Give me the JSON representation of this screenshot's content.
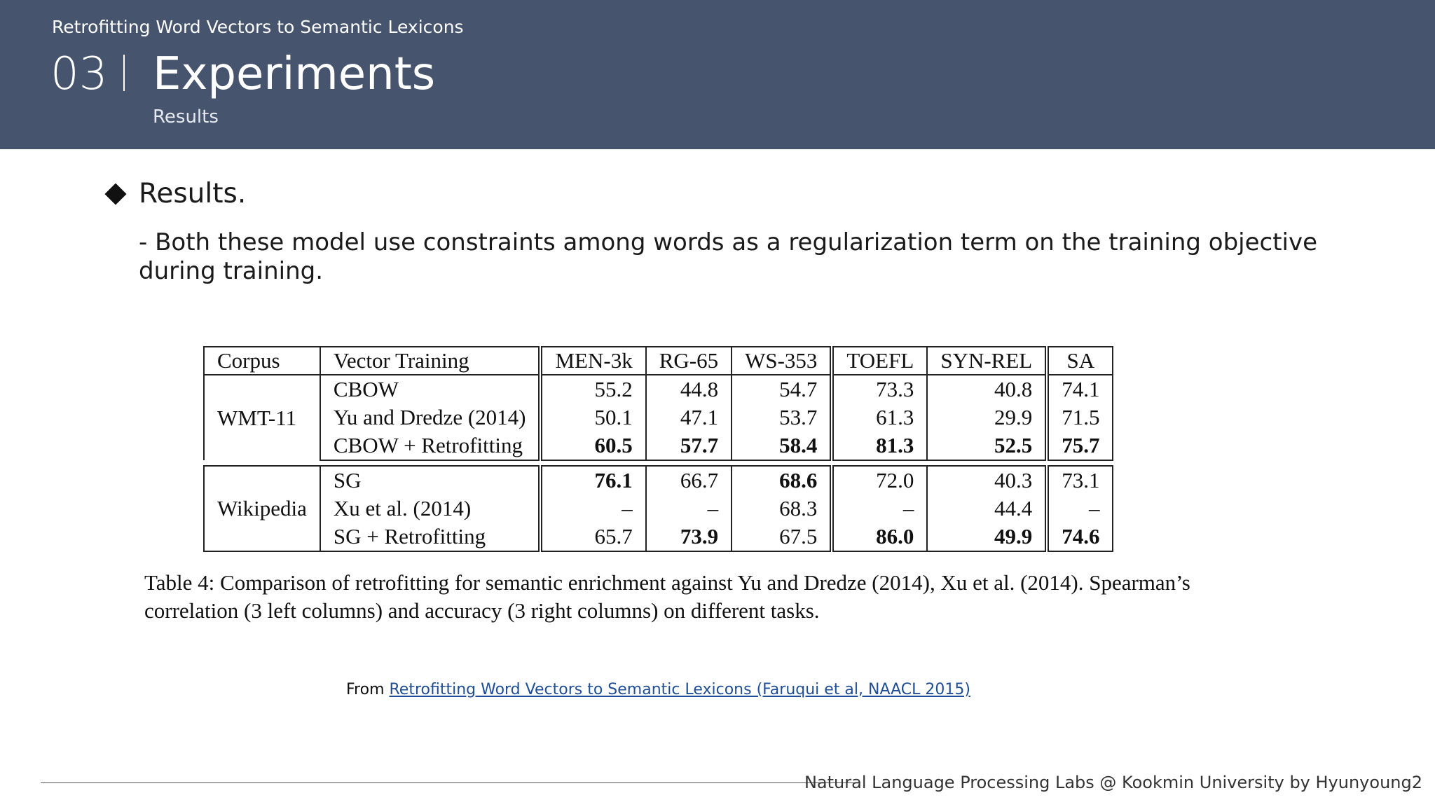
{
  "header": {
    "deck_title": "Retrofitting Word Vectors to Semantic Lexicons",
    "section_number": "03",
    "section_title": "Experiments",
    "section_subtitle": "Results"
  },
  "content": {
    "bullet": "Results.",
    "body": "- Both these model use constraints among words as a regularization term on the training objective during training."
  },
  "table": {
    "headers": [
      "Corpus",
      "Vector Training",
      "MEN-3k",
      "RG-65",
      "WS-353",
      "TOEFL",
      "SYN-REL",
      "SA"
    ],
    "groups": [
      {
        "corpus": "WMT-11",
        "rows": [
          {
            "method": "CBOW",
            "values": [
              "55.2",
              "44.8",
              "54.7",
              "73.3",
              "40.8",
              "74.1"
            ],
            "bold": [
              false,
              false,
              false,
              false,
              false,
              false
            ]
          },
          {
            "method": "Yu and Dredze (2014)",
            "values": [
              "50.1",
              "47.1",
              "53.7",
              "61.3",
              "29.9",
              "71.5"
            ],
            "bold": [
              false,
              false,
              false,
              false,
              false,
              false
            ]
          },
          {
            "method": "CBOW + Retrofitting",
            "values": [
              "60.5",
              "57.7",
              "58.4",
              "81.3",
              "52.5",
              "75.7"
            ],
            "bold": [
              true,
              true,
              true,
              true,
              true,
              true
            ]
          }
        ]
      },
      {
        "corpus": "Wikipedia",
        "rows": [
          {
            "method": "SG",
            "values": [
              "76.1",
              "66.7",
              "68.6",
              "72.0",
              "40.3",
              "73.1"
            ],
            "bold": [
              true,
              false,
              true,
              false,
              false,
              false
            ]
          },
          {
            "method": "Xu et al. (2014)",
            "values": [
              "–",
              "–",
              "68.3",
              "–",
              "44.4",
              "–"
            ],
            "bold": [
              false,
              false,
              false,
              false,
              false,
              false
            ]
          },
          {
            "method": "SG + Retrofitting",
            "values": [
              "65.7",
              "73.9",
              "67.5",
              "86.0",
              "49.9",
              "74.6"
            ],
            "bold": [
              false,
              true,
              false,
              true,
              true,
              true
            ]
          }
        ]
      }
    ],
    "caption": "Table 4: Comparison of retrofitting for semantic enrichment against Yu and Dredze (2014), Xu et al. (2014). Spearman’s correlation (3 left columns) and accuracy (3 right columns) on different tasks."
  },
  "source": {
    "prefix": "From ",
    "link_text": "Retrofitting Word Vectors to Semantic Lexicons (Faruqui et al, NAACL 2015)"
  },
  "footer": {
    "text": "Natural Language Processing Labs @ Kookmin University by Hyunyoung2"
  }
}
